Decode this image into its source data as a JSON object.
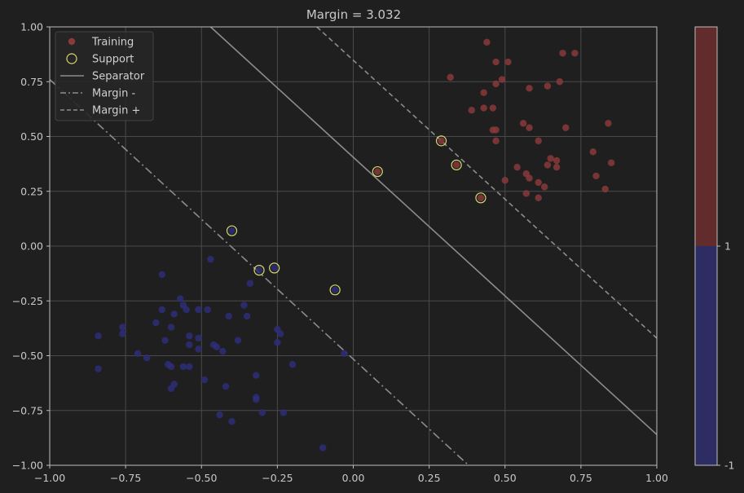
{
  "chart_data": {
    "type": "scatter",
    "title": "Margin = 3.032",
    "xlabel": "",
    "ylabel": "",
    "xlim": [
      -1.0,
      1.0
    ],
    "ylim": [
      -1.0,
      1.0
    ],
    "grid": true,
    "legend_position": "top-left",
    "x_ticks": [
      "−1.00",
      "−0.75",
      "−0.50",
      "−0.25",
      "0.00",
      "0.25",
      "0.50",
      "0.75",
      "1.00"
    ],
    "x_tick_values": [
      -1.0,
      -0.75,
      -0.5,
      -0.25,
      0.0,
      0.25,
      0.5,
      0.75,
      1.0
    ],
    "y_ticks": [
      "1.00",
      "0.75",
      "0.50",
      "0.25",
      "0.00",
      "−0.25",
      "−0.50",
      "−0.75",
      "−1.00"
    ],
    "y_tick_values": [
      1.0,
      0.75,
      0.5,
      0.25,
      0.0,
      -0.25,
      -0.5,
      -0.75,
      -1.0
    ],
    "legend": [
      {
        "label": "Training",
        "kind": "point"
      },
      {
        "label": "Support",
        "kind": "ring"
      },
      {
        "label": "Separator",
        "kind": "solid"
      },
      {
        "label": "Margin -",
        "kind": "dashdot"
      },
      {
        "label": "Margin +",
        "kind": "dashed"
      }
    ],
    "colors": {
      "class_pos": "#8a3a3a",
      "class_neg": "#2e2e7a",
      "support_ring": "#d8d870",
      "line": "#8c8c8c",
      "grid": "#4a4a4a",
      "background": "#1f1f1f",
      "colorbar_top": "#632c2c",
      "colorbar_bottom": "#2d2d63"
    },
    "colorbar": {
      "labels": [
        "1",
        "-1"
      ],
      "levels": [
        1,
        -1
      ]
    },
    "lines": {
      "separator": [
        [
          -0.47,
          1.0
        ],
        [
          1.0,
          -0.86
        ]
      ],
      "margin_minus": [
        [
          -1.0,
          0.76
        ],
        [
          0.38,
          -1.0
        ]
      ],
      "margin_plus": [
        [
          -0.12,
          1.0
        ],
        [
          1.0,
          -0.42
        ]
      ]
    },
    "series": [
      {
        "class": 1,
        "points": [
          [
            0.44,
            0.93
          ],
          [
            0.47,
            0.84
          ],
          [
            0.51,
            0.84
          ],
          [
            0.32,
            0.77
          ],
          [
            0.69,
            0.88
          ],
          [
            0.73,
            0.88
          ],
          [
            0.47,
            0.74
          ],
          [
            0.49,
            0.76
          ],
          [
            0.58,
            0.72
          ],
          [
            0.64,
            0.73
          ],
          [
            0.68,
            0.75
          ],
          [
            0.43,
            0.7
          ],
          [
            0.43,
            0.63
          ],
          [
            0.46,
            0.63
          ],
          [
            0.39,
            0.62
          ],
          [
            0.56,
            0.56
          ],
          [
            0.58,
            0.54
          ],
          [
            0.46,
            0.53
          ],
          [
            0.47,
            0.53
          ],
          [
            0.84,
            0.56
          ],
          [
            0.7,
            0.54
          ],
          [
            0.47,
            0.48
          ],
          [
            0.61,
            0.48
          ],
          [
            0.29,
            0.48
          ],
          [
            0.79,
            0.43
          ],
          [
            0.65,
            0.4
          ],
          [
            0.67,
            0.39
          ],
          [
            0.64,
            0.37
          ],
          [
            0.67,
            0.36
          ],
          [
            0.85,
            0.38
          ],
          [
            0.54,
            0.36
          ],
          [
            0.34,
            0.37
          ],
          [
            0.57,
            0.33
          ],
          [
            0.58,
            0.31
          ],
          [
            0.5,
            0.3
          ],
          [
            0.61,
            0.29
          ],
          [
            0.63,
            0.27
          ],
          [
            0.8,
            0.32
          ],
          [
            0.83,
            0.26
          ],
          [
            0.57,
            0.24
          ],
          [
            0.61,
            0.22
          ],
          [
            0.42,
            0.22
          ],
          [
            0.08,
            0.34
          ]
        ]
      },
      {
        "class": -1,
        "points": [
          [
            -0.4,
            0.07
          ],
          [
            -0.47,
            -0.06
          ],
          [
            -0.63,
            -0.13
          ],
          [
            -0.31,
            -0.11
          ],
          [
            -0.26,
            -0.1
          ],
          [
            -0.34,
            -0.17
          ],
          [
            -0.06,
            -0.2
          ],
          [
            -0.57,
            -0.24
          ],
          [
            -0.56,
            -0.27
          ],
          [
            -0.63,
            -0.29
          ],
          [
            -0.55,
            -0.29
          ],
          [
            -0.51,
            -0.29
          ],
          [
            -0.48,
            -0.29
          ],
          [
            -0.36,
            -0.27
          ],
          [
            -0.59,
            -0.31
          ],
          [
            -0.41,
            -0.32
          ],
          [
            -0.35,
            -0.32
          ],
          [
            -0.65,
            -0.35
          ],
          [
            -0.76,
            -0.37
          ],
          [
            -0.6,
            -0.37
          ],
          [
            -0.25,
            -0.38
          ],
          [
            -0.24,
            -0.4
          ],
          [
            -0.76,
            -0.4
          ],
          [
            -0.84,
            -0.41
          ],
          [
            -0.54,
            -0.41
          ],
          [
            -0.51,
            -0.42
          ],
          [
            -0.38,
            -0.43
          ],
          [
            -0.62,
            -0.43
          ],
          [
            -0.25,
            -0.44
          ],
          [
            -0.54,
            -0.45
          ],
          [
            -0.46,
            -0.45
          ],
          [
            -0.45,
            -0.46
          ],
          [
            -0.51,
            -0.47
          ],
          [
            -0.43,
            -0.48
          ],
          [
            -0.71,
            -0.49
          ],
          [
            -0.03,
            -0.49
          ],
          [
            -0.68,
            -0.51
          ],
          [
            -0.2,
            -0.54
          ],
          [
            -0.61,
            -0.54
          ],
          [
            -0.6,
            -0.55
          ],
          [
            -0.56,
            -0.55
          ],
          [
            -0.54,
            -0.55
          ],
          [
            -0.84,
            -0.56
          ],
          [
            -0.32,
            -0.59
          ],
          [
            -0.49,
            -0.61
          ],
          [
            -0.59,
            -0.63
          ],
          [
            -0.42,
            -0.64
          ],
          [
            -0.6,
            -0.65
          ],
          [
            -0.32,
            -0.69
          ],
          [
            -0.32,
            -0.7
          ],
          [
            -0.23,
            -0.76
          ],
          [
            -0.3,
            -0.76
          ],
          [
            -0.44,
            -0.77
          ],
          [
            -0.4,
            -0.8
          ],
          [
            -0.1,
            -0.92
          ]
        ]
      }
    ],
    "support_vectors": [
      [
        0.08,
        0.34
      ],
      [
        0.29,
        0.48
      ],
      [
        0.34,
        0.37
      ],
      [
        0.42,
        0.22
      ],
      [
        -0.4,
        0.07
      ],
      [
        -0.31,
        -0.11
      ],
      [
        -0.26,
        -0.1
      ],
      [
        -0.06,
        -0.2
      ]
    ]
  }
}
